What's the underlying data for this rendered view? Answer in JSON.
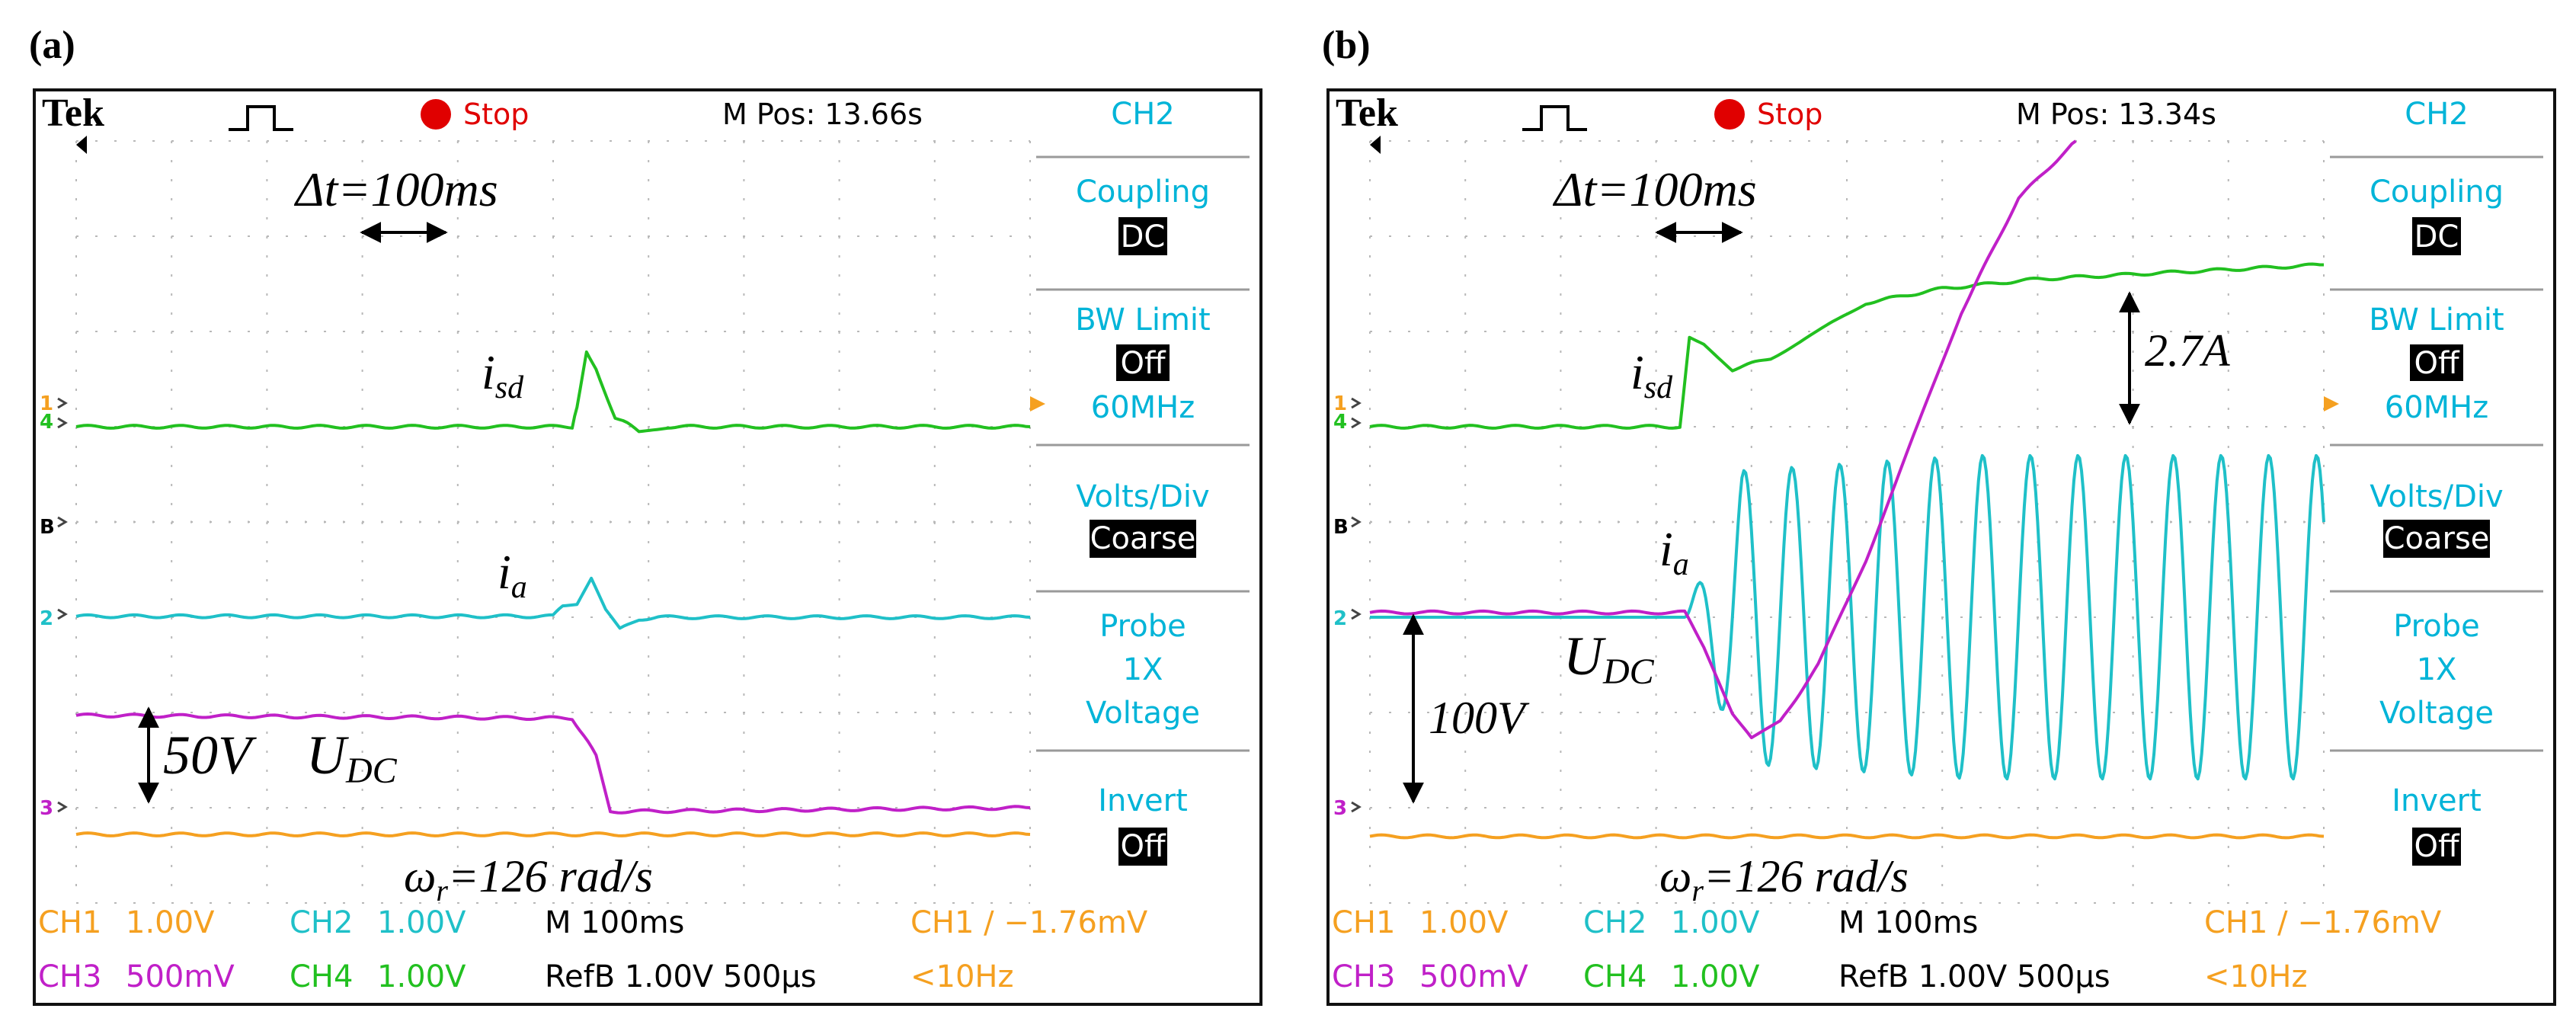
{
  "figure": {
    "label_a": "(a)",
    "label_b": "(b)"
  },
  "colors": {
    "ch1": "#f5a020",
    "ch2": "#1fc0c8",
    "ch3": "#c020c8",
    "ch4": "#22c020",
    "menu": "#00b4d8",
    "grid": "#b8b8b8",
    "stop": "#e00000",
    "frame": "#111111"
  },
  "chart_data": [
    {
      "type": "line",
      "panel": "(a)",
      "header": {
        "brand": "Tek",
        "trigger_icon": "pulse-trigger-icon",
        "run_state": "Stop",
        "mpos": "M Pos: 13.66s"
      },
      "menu": {
        "channel": "CH2",
        "coupling_label": "Coupling",
        "coupling_value": "DC",
        "bw_label": "BW Limit",
        "bw_value": "Off",
        "bw_freq": "60MHz",
        "vdiv_label": "Volts/Div",
        "vdiv_value": "Coarse",
        "probe_label": "Probe",
        "probe_value": "1X",
        "probe_type": "Voltage",
        "invert_label": "Invert",
        "invert_value": "Off"
      },
      "footer": {
        "ch1_name": "CH1",
        "ch1_scale": "1.00V",
        "ch2_name": "CH2",
        "ch2_scale": "1.00V",
        "ch3_name": "CH3",
        "ch3_scale": "500mV",
        "ch4_name": "CH4",
        "ch4_scale": "1.00V",
        "timebase": "M 100ms",
        "ref": "RefB 1.00V 500µs",
        "trig": "CH1 ∕ −1.76mV",
        "freq": "<10Hz"
      },
      "markers": {
        "ch1": "1",
        "ch4": "4",
        "refb": "B",
        "ch2": "2",
        "ch3": "3"
      },
      "annotations": {
        "dt": "Δt=100ms",
        "isd": "i",
        "isd_sub": "sd",
        "ia": "i",
        "ia_sub": "a",
        "udc": "U",
        "udc_sub": "DC",
        "udc_step": "50V",
        "omega": "ω",
        "omega_sub": "r",
        "omega_val": "=126 rad/s"
      },
      "x_unit": "ms",
      "y_unit": "divisions",
      "xlim": [
        0,
        1000
      ],
      "ylim": [
        -4,
        4
      ],
      "series": [
        {
          "name": "isd (CH4)",
          "color_key": "ch4",
          "x": [
            0,
            520,
            525,
            535,
            545,
            565,
            590,
            620,
            1000
          ],
          "y": [
            1.0,
            1.0,
            1.2,
            1.8,
            1.6,
            1.1,
            0.96,
            1.0,
            1.0
          ]
        },
        {
          "name": "ia (CH2)",
          "color_key": "ch2",
          "x": [
            0,
            500,
            510,
            525,
            540,
            555,
            570,
            590,
            610,
            1000
          ],
          "y": [
            -0.99,
            -0.99,
            -0.88,
            -0.87,
            -0.6,
            -0.93,
            -1.13,
            -1.02,
            -1.0,
            -1.0
          ]
        },
        {
          "name": "UDC (CH3)",
          "color_key": "ch3",
          "x": [
            0,
            520,
            545,
            560,
            1000
          ],
          "y": [
            -2.03,
            -2.06,
            -2.45,
            -3.04,
            -3.0
          ]
        },
        {
          "name": "ωr (CH1)",
          "color_key": "ch1",
          "x": [
            0,
            1000
          ],
          "y": [
            -3.28,
            -3.28
          ]
        }
      ]
    },
    {
      "type": "line",
      "panel": "(b)",
      "header": {
        "brand": "Tek",
        "trigger_icon": "pulse-trigger-icon",
        "run_state": "Stop",
        "mpos": "M Pos: 13.34s"
      },
      "menu": {
        "channel": "CH2",
        "coupling_label": "Coupling",
        "coupling_value": "DC",
        "bw_label": "BW Limit",
        "bw_value": "Off",
        "bw_freq": "60MHz",
        "vdiv_label": "Volts/Div",
        "vdiv_value": "Coarse",
        "probe_label": "Probe",
        "probe_value": "1X",
        "probe_type": "Voltage",
        "invert_label": "Invert",
        "invert_value": "Off"
      },
      "footer": {
        "ch1_name": "CH1",
        "ch1_scale": "1.00V",
        "ch2_name": "CH2",
        "ch2_scale": "1.00V",
        "ch3_name": "CH3",
        "ch3_scale": "500mV",
        "ch4_name": "CH4",
        "ch4_scale": "1.00V",
        "timebase": "M 100ms",
        "ref": "RefB 1.00V 500µs",
        "trig": "CH1 ∕ −1.76mV",
        "freq": "<10Hz"
      },
      "markers": {
        "ch1": "1",
        "ch4": "4",
        "refb": "B",
        "ch2": "2",
        "ch3": "3"
      },
      "annotations": {
        "dt": "Δt=100ms",
        "isd": "i",
        "isd_sub": "sd",
        "ia": "i",
        "ia_sub": "a",
        "udc": "U",
        "udc_sub": "DC",
        "udc_step": "100V",
        "isd_step": "2.7A",
        "omega": "ω",
        "omega_sub": "r",
        "omega_val": "=126 rad/s"
      },
      "x_unit": "ms",
      "y_unit": "divisions",
      "xlim": [
        0,
        1000
      ],
      "ylim": [
        -4,
        4
      ],
      "series": [
        {
          "name": "isd (CH4)",
          "color_key": "ch4",
          "x": [
            0,
            325,
            335,
            350,
            380,
            420,
            470,
            520,
            600,
            700,
            800,
            900,
            1000
          ],
          "y": [
            1.0,
            1.0,
            1.95,
            1.88,
            1.6,
            1.72,
            2.0,
            2.3,
            2.45,
            2.55,
            2.6,
            2.65,
            2.7
          ]
        },
        {
          "name": "ia (CH2)",
          "color_key": "ch2",
          "freq_hz": 20,
          "onset_ms": 330,
          "amplitude_div": [
            1.5,
            1.7
          ],
          "x": [
            0,
            330,
            1000
          ],
          "y": [
            -1.0,
            -1.0,
            -1.0
          ]
        },
        {
          "name": "UDC (CH3)",
          "color_key": "ch3",
          "x": [
            0,
            330,
            350,
            380,
            400,
            430,
            470,
            520,
            570,
            620,
            680,
            740
          ],
          "y": [
            -0.95,
            -0.95,
            -1.3,
            -2.0,
            -2.28,
            -2.1,
            -1.5,
            -0.4,
            0.9,
            2.2,
            3.4,
            4.0
          ]
        },
        {
          "name": "ωr (CH1)",
          "color_key": "ch1",
          "x": [
            0,
            1000
          ],
          "y": [
            -3.3,
            -3.3
          ]
        }
      ]
    }
  ]
}
